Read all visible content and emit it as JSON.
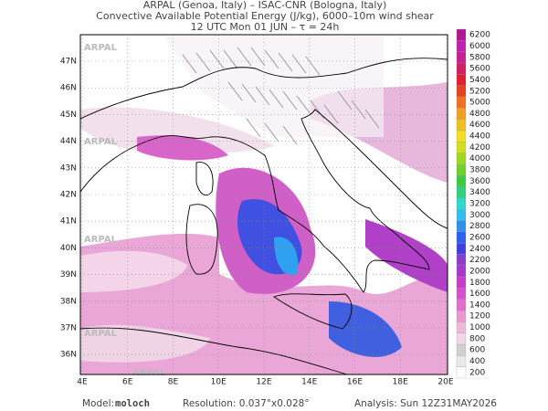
{
  "header": {
    "lines": [
      "ARPAL (Genoa, Italy)  –  ISAC-CNR (Bologna, Italy)",
      "Convective Available Potential Energy (J/kg), 6000–10m wind shear",
      "12 UTC Mon 01 JUN  –  τ = 24h"
    ]
  },
  "map": {
    "lat_labels": [
      "47N",
      "46N",
      "45N",
      "44N",
      "43N",
      "42N",
      "41N",
      "40N",
      "39N",
      "38N",
      "37N",
      "36N"
    ],
    "lon_labels": [
      "4E",
      "6E",
      "8E",
      "10E",
      "12E",
      "14E",
      "16E",
      "18E",
      "20E"
    ],
    "watermark": "ARPAL"
  },
  "colorbar": {
    "levels": [
      200,
      400,
      600,
      800,
      1000,
      1200,
      1400,
      1600,
      1800,
      2000,
      2200,
      2400,
      2600,
      2800,
      3000,
      3200,
      3400,
      3600,
      3800,
      4000,
      4200,
      4400,
      4600,
      4800,
      5000,
      5200,
      5400,
      5600,
      5800,
      6000,
      6200
    ],
    "colors": [
      "#ffffff",
      "#e8e8e8",
      "#d0d0d0",
      "#f3d6e6",
      "#eeb8d8",
      "#e89ad0",
      "#e070cc",
      "#d850c8",
      "#c83cc8",
      "#a838c8",
      "#8a3ccc",
      "#4040e0",
      "#3060f0",
      "#3090f0",
      "#30c0f0",
      "#30d8c8",
      "#30d080",
      "#40c840",
      "#70d030",
      "#a0d820",
      "#d0e020",
      "#f0e020",
      "#f0c020",
      "#f0a020",
      "#f07020",
      "#e84020",
      "#e02030",
      "#d02060",
      "#c82090",
      "#c020b0",
      "#b01890"
    ]
  },
  "footer": {
    "model_label": "Model:",
    "model": "moloch",
    "resolution": "Resolution: 0.037°x0.028°",
    "analysis": "Analysis: Sun 12Z31MAY2026"
  }
}
